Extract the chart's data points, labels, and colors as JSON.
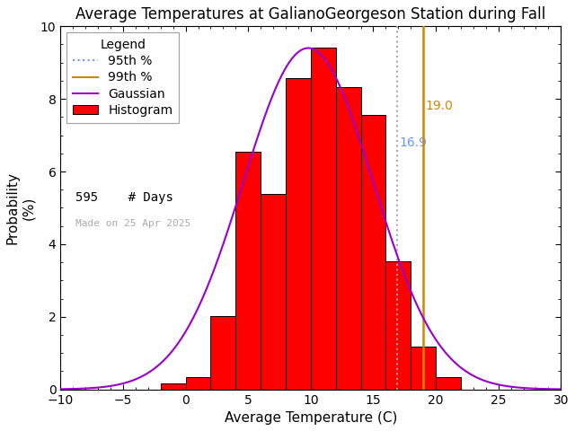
{
  "title": "Average Temperatures at GalianoGeorgeson Station during Fall",
  "xlabel": "Average Temperature (C)",
  "ylabel": "Probability\n(%)",
  "xlim": [
    -10,
    30
  ],
  "ylim": [
    0,
    10
  ],
  "xticks": [
    -10,
    -5,
    0,
    5,
    10,
    15,
    20,
    25,
    30
  ],
  "yticks": [
    0,
    2,
    4,
    6,
    8,
    10
  ],
  "bin_edges": [
    -2,
    0,
    2,
    4,
    6,
    8,
    10,
    12,
    14,
    16,
    18,
    20,
    22
  ],
  "bin_heights": [
    0.17,
    0.34,
    2.02,
    6.55,
    5.38,
    8.57,
    9.41,
    8.32,
    7.56,
    3.53,
    1.18,
    0.34
  ],
  "bar_color": "#ff0000",
  "bar_edgecolor": "#000000",
  "gaussian_color": "#9900cc",
  "gaussian_mean": 9.8,
  "gaussian_std": 5.2,
  "gaussian_peak": 9.4,
  "p95": 16.9,
  "p99": 19.0,
  "p95_color": "#6699ff",
  "p99_color": "#cc8800",
  "n_days": 595,
  "made_on": "Made on 25 Apr 2025",
  "bg_color": "#ffffff",
  "title_color": "#000000",
  "title_fontsize": 12,
  "label_fontsize": 11,
  "tick_fontsize": 10,
  "legend_fontsize": 10
}
